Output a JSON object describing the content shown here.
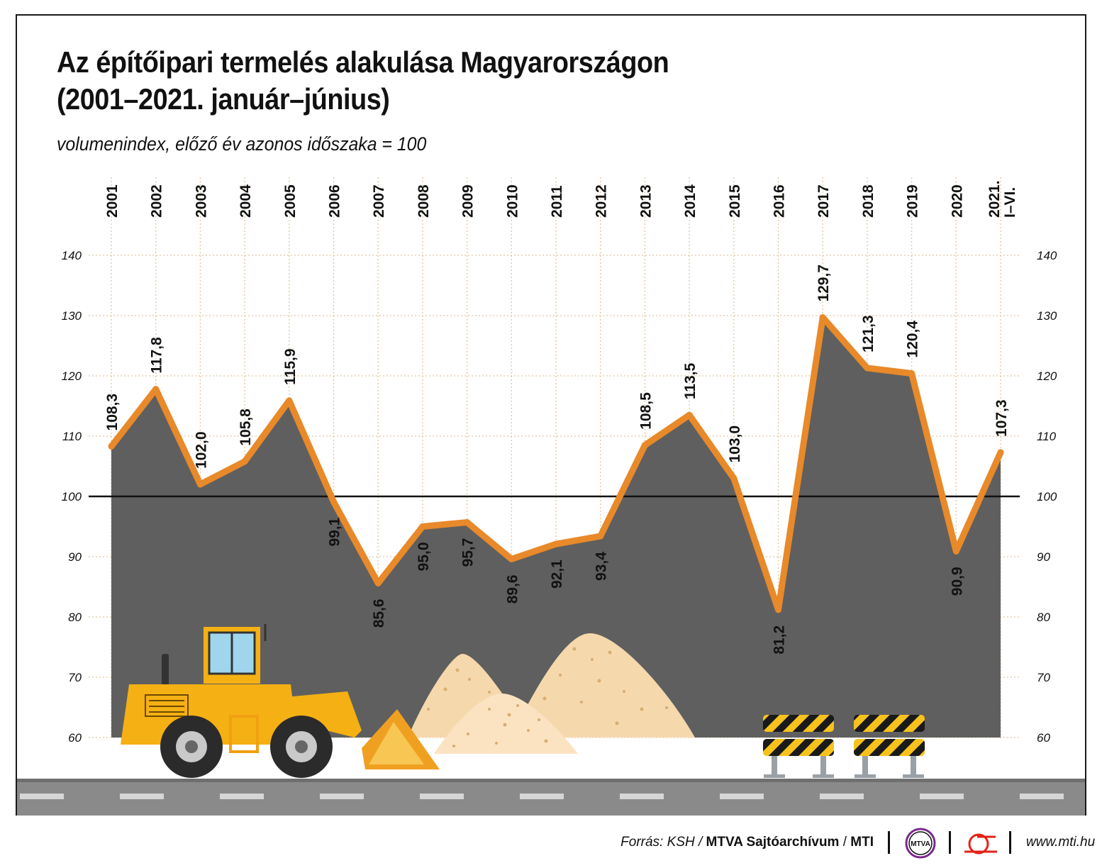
{
  "title_line1": "Az építőipari termelés alakulása Magyarországon",
  "title_line2": "(2001–2021. január–június)",
  "subtitle": "volumenindex, előző év azonos időszaka = 100",
  "colors": {
    "line": "#e8892a",
    "area": "#5f5f5f",
    "baseline": "#111111",
    "grid": "#e0c7a0",
    "sand": "#f6d8ad",
    "loader_yellow": "#f5b014",
    "road": "#8a8a8a"
  },
  "chart_data": {
    "type": "area",
    "categories": [
      "2001",
      "2002",
      "2003",
      "2004",
      "2005",
      "2006",
      "2007",
      "2008",
      "2009",
      "2010",
      "2011",
      "2012",
      "2013",
      "2014",
      "2015",
      "2016",
      "2017",
      "2018",
      "2019",
      "2020",
      "2021.\nI–VI."
    ],
    "category_lines": [
      [
        "2001"
      ],
      [
        "2002"
      ],
      [
        "2003"
      ],
      [
        "2004"
      ],
      [
        "2005"
      ],
      [
        "2006"
      ],
      [
        "2007"
      ],
      [
        "2008"
      ],
      [
        "2009"
      ],
      [
        "2010"
      ],
      [
        "2011"
      ],
      [
        "2012"
      ],
      [
        "2013"
      ],
      [
        "2014"
      ],
      [
        "2015"
      ],
      [
        "2016"
      ],
      [
        "2017"
      ],
      [
        "2018"
      ],
      [
        "2019"
      ],
      [
        "2020"
      ],
      [
        "2021.",
        "I–VI."
      ]
    ],
    "values": [
      108.3,
      117.8,
      102.0,
      105.8,
      115.9,
      99.1,
      85.6,
      95.0,
      95.7,
      89.6,
      92.1,
      93.4,
      108.5,
      113.5,
      103.0,
      81.2,
      129.7,
      121.3,
      120.4,
      90.9,
      107.3
    ],
    "value_labels": [
      "108,3",
      "117,8",
      "102,0",
      "105,8",
      "115,9",
      "99,1",
      "85,6",
      "95,0",
      "95,7",
      "89,6",
      "92,1",
      "93,4",
      "108,5",
      "113,5",
      "103,0",
      "81,2",
      "129,7",
      "121,3",
      "120,4",
      "90,9",
      "107,3"
    ],
    "label_above": [
      true,
      true,
      true,
      true,
      true,
      false,
      false,
      false,
      false,
      false,
      false,
      false,
      true,
      true,
      true,
      false,
      true,
      true,
      true,
      false,
      true
    ],
    "ylim": [
      60,
      140
    ],
    "yticks": [
      60,
      70,
      80,
      90,
      100,
      110,
      120,
      130,
      140
    ],
    "reference_line": 100,
    "axis_labels_both_sides": true,
    "grid": "dotted vertical and horizontal"
  },
  "footer": {
    "source_prefix": "Forrás: KSH /",
    "source_org": "MTVA Sajtóarchívum",
    "source_sep": "/",
    "source_agency": "MTI",
    "mtva_logo_text": "MTVA",
    "website": "www.mti.hu"
  }
}
